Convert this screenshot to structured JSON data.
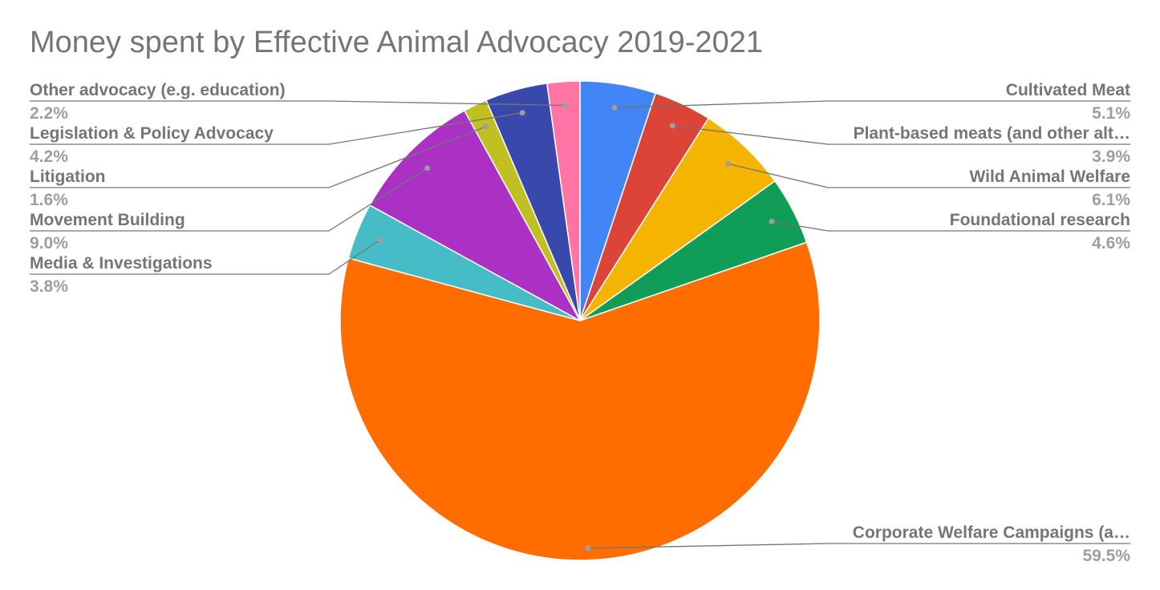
{
  "chart_data": {
    "type": "pie",
    "title": "Money spent by Effective Animal Advocacy 2019-2021",
    "start_angle_deg": 0,
    "direction": "clockwise",
    "legend": "none",
    "slices": [
      {
        "label": "Cultivated Meat",
        "display_label": "Cultivated Meat",
        "value": 5.1,
        "pct_label": "5.1%",
        "color": "#4285f4",
        "side": "right"
      },
      {
        "label": "Plant-based meats (and other alt...",
        "display_label": "Plant-based meats (and other alt…",
        "value": 3.9,
        "pct_label": "3.9%",
        "color": "#db4437",
        "side": "right"
      },
      {
        "label": "Wild Animal Welfare",
        "display_label": "Wild Animal Welfare",
        "value": 6.1,
        "pct_label": "6.1%",
        "color": "#f4b400",
        "side": "right"
      },
      {
        "label": "Foundational research",
        "display_label": "Foundational research",
        "value": 4.6,
        "pct_label": "4.6%",
        "color": "#0f9d58",
        "side": "right"
      },
      {
        "label": "Corporate Welfare Campaigns (a...",
        "display_label": "Corporate Welfare Campaigns (a…",
        "value": 59.5,
        "pct_label": "59.5%",
        "color": "#ff6d00",
        "side": "right"
      },
      {
        "label": "Media & Investigations",
        "display_label": "Media & Investigations",
        "value": 3.8,
        "pct_label": "3.8%",
        "color": "#46bdc6",
        "side": "left"
      },
      {
        "label": "Movement Building",
        "display_label": "Movement Building",
        "value": 9.0,
        "pct_label": "9.0%",
        "color": "#ab30c4",
        "side": "left"
      },
      {
        "label": "Litigation",
        "display_label": "Litigation",
        "value": 1.6,
        "pct_label": "1.6%",
        "color": "#c0c023",
        "side": "left"
      },
      {
        "label": "Legislation & Policy Advocacy",
        "display_label": "Legislation & Policy Advocacy",
        "value": 4.2,
        "pct_label": "4.2%",
        "color": "#3949ab",
        "side": "left"
      },
      {
        "label": "Other advocacy (e.g. education)",
        "display_label": "Other advocacy (e.g. education)",
        "value": 2.2,
        "pct_label": "2.2%",
        "color": "#ff74a5",
        "side": "left"
      }
    ]
  }
}
